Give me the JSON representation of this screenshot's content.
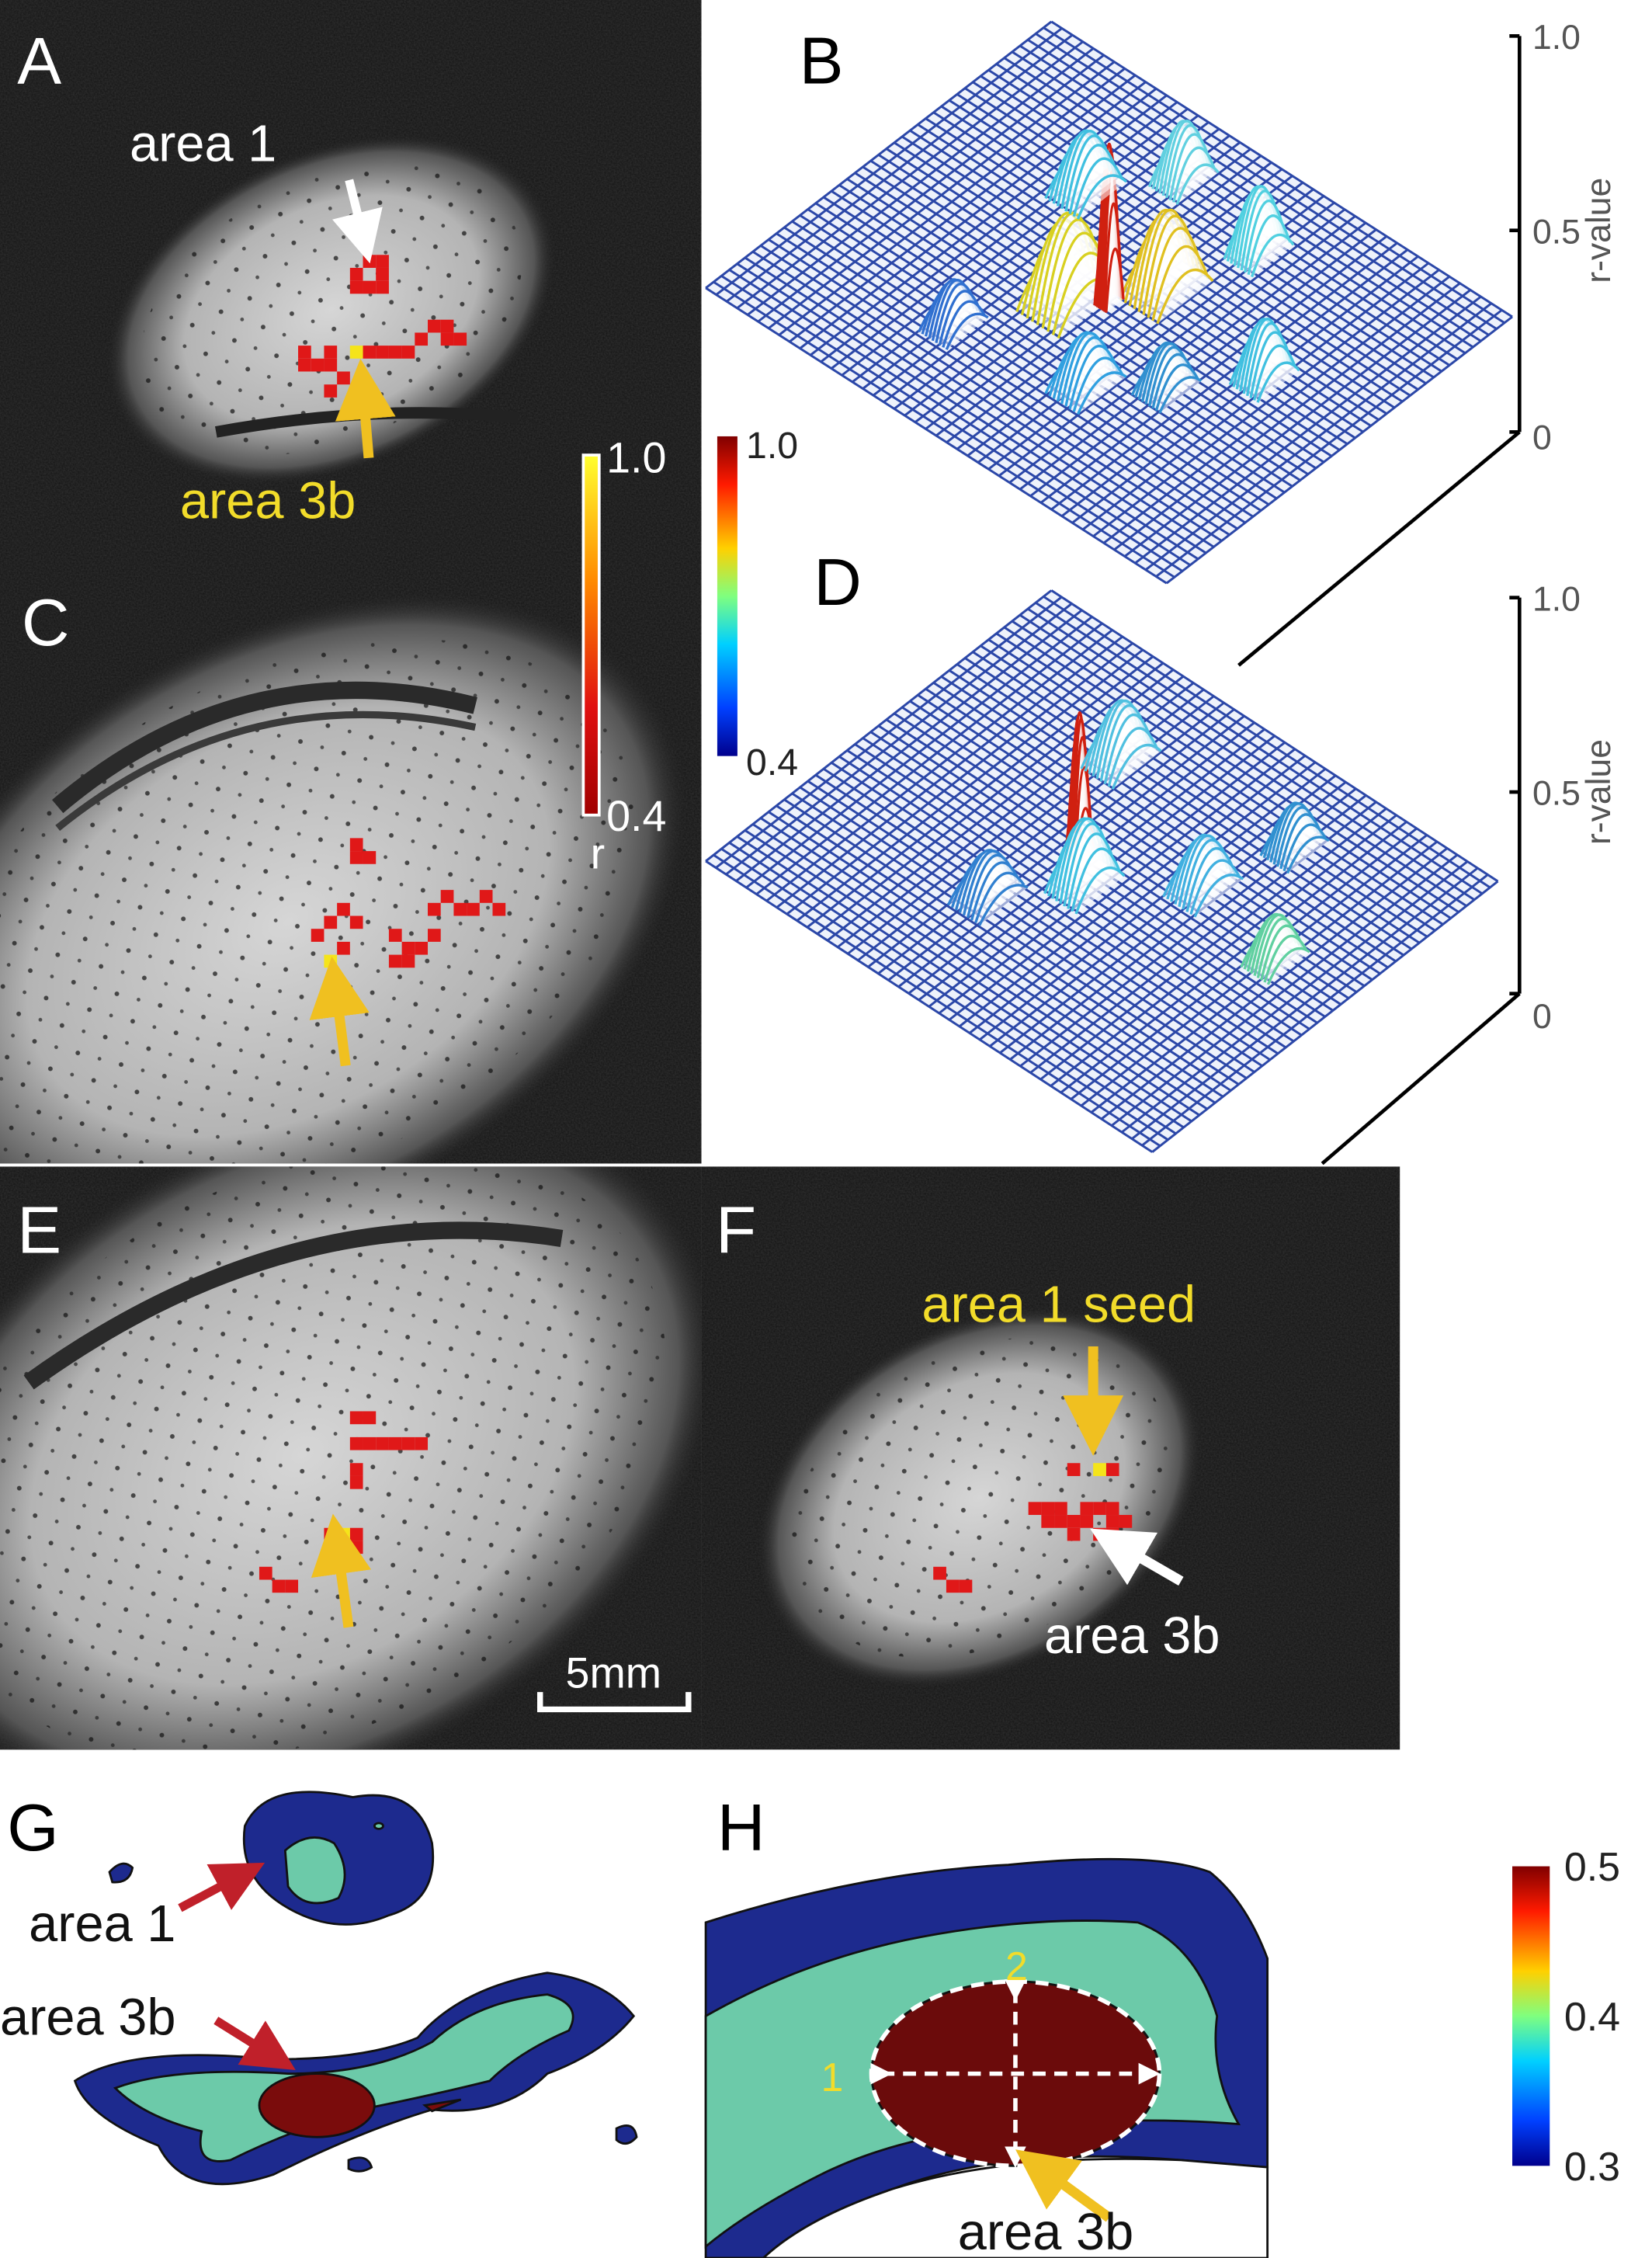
{
  "colorbar_r": {
    "max": "1.0",
    "min": "0.4",
    "title": "r"
  },
  "colorbar_jet": {
    "max": "1.0",
    "min": "0.4"
  },
  "panels": [
    {
      "label": "A",
      "annotations": [
        "area 1",
        "area 3b"
      ]
    },
    {
      "label": "B",
      "axis": {
        "title": "r-value",
        "ticks": [
          "1.0",
          "0.5",
          "0"
        ]
      }
    },
    {
      "label": "C"
    },
    {
      "label": "D",
      "axis": {
        "title": "r-value",
        "ticks": [
          "1.0",
          "0.5",
          "0"
        ]
      }
    },
    {
      "label": "E",
      "scale_bar": "5mm"
    },
    {
      "label": "F",
      "annotations": [
        "area 1 seed",
        "area 3b"
      ]
    },
    {
      "label": "G",
      "annotations": [
        "area 1",
        "area 3b"
      ]
    },
    {
      "label": "H",
      "annotations": [
        "1",
        "2",
        "area 3b"
      ],
      "colorbar": {
        "ticks": [
          "0.5",
          "0.4",
          "0.3"
        ]
      }
    }
  ]
}
